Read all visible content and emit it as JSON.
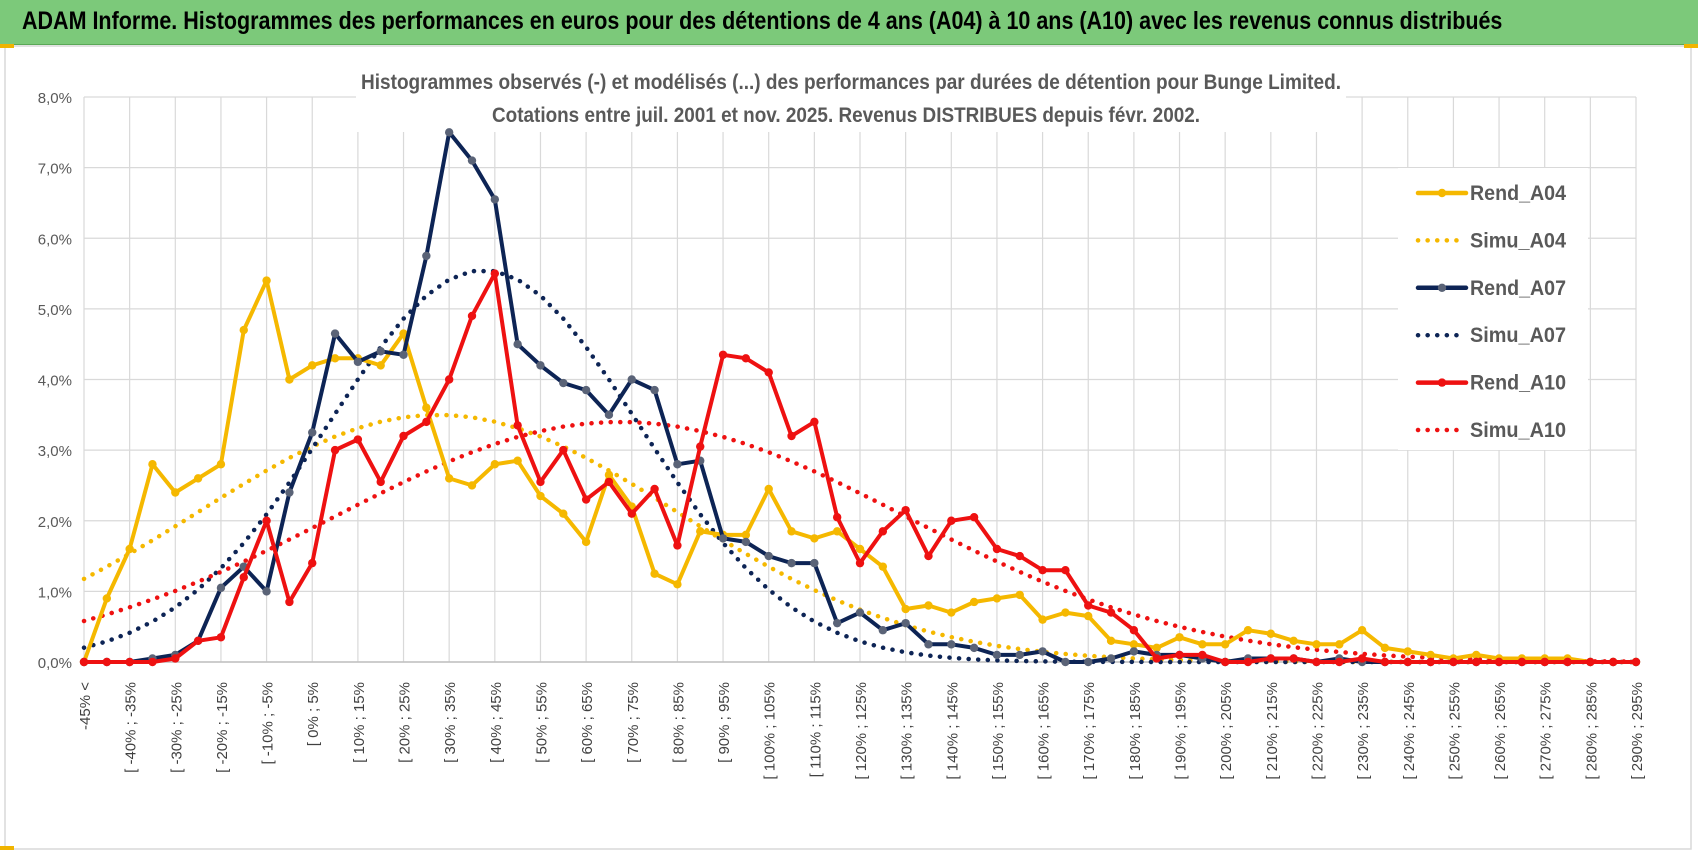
{
  "banner": {
    "title": "ADAM Informe. Histogrammes des performances en euros pour des détentions de 4 ans (A04) à 10 ans (A10) avec les revenus connus distribués"
  },
  "colors": {
    "banner_bg": "#7cc97a",
    "a04": "#f5b800",
    "a07": "#0d2455",
    "a07_marker": "#5a6377",
    "a10": "#ee1111",
    "grid": "#d9d9d9",
    "text": "#595959"
  },
  "chart_data": {
    "type": "line",
    "title_line1": "Histogrammes observés (-) et modélisés (...) des performances par durées de détention pour Bunge Limited.",
    "title_line2": "Cotations entre juil. 2001 et nov. 2025. Revenus DISTRIBUES depuis févr. 2002.",
    "ylim": [
      0,
      8
    ],
    "yticks": [
      "0,0%",
      "1,0%",
      "2,0%",
      "3,0%",
      "4,0%",
      "5,0%",
      "6,0%",
      "7,0%",
      "8,0%"
    ],
    "tick_labels": [
      "-45% <",
      "[ -40% ; -35%",
      "[ -30% ; -25%",
      "[ -20% ; -15%",
      "[ -10% ; -5%",
      "[ 0% ; 5%",
      "[ 10% ; 15%",
      "[ 20% ; 25%",
      "[ 30% ; 35%",
      "[ 40% ; 45%",
      "[ 50% ; 55%",
      "[ 60% ; 65%",
      "[ 70% ; 75%",
      "[ 80% ; 85%",
      "[ 90% ; 95%",
      "[ 100% ; 105%",
      "[ 110% ; 115%",
      "[ 120% ; 125%",
      "[ 130% ; 135%",
      "[ 140% ; 145%",
      "[ 150% ; 155%",
      "[ 160% ; 165%",
      "[ 170% ; 175%",
      "[ 180% ; 185%",
      "[ 190% ; 195%",
      "[ 200% ; 205%",
      "[ 210% ; 215%",
      "[ 220% ; 225%",
      "[ 230% ; 235%",
      "[ 240% ; 245%",
      "[ 250% ; 255%",
      "[ 260% ; 265%",
      "[ 270% ; 275%",
      "[ 280% ; 285%",
      "[ 290% ; 295%"
    ],
    "n_categories": 69,
    "legend_position": "right",
    "series": [
      {
        "name": "Rend_A04",
        "style": "solid",
        "color": "#f5b800",
        "markers": true,
        "values": [
          0.0,
          0.9,
          1.6,
          2.8,
          2.4,
          2.6,
          2.8,
          4.7,
          5.4,
          4.0,
          4.2,
          4.3,
          4.3,
          4.2,
          4.65,
          3.6,
          2.6,
          2.5,
          2.8,
          2.85,
          2.35,
          2.1,
          1.7,
          2.65,
          2.2,
          1.25,
          1.1,
          1.85,
          1.8,
          1.8,
          2.45,
          1.85,
          1.75,
          1.85,
          1.6,
          1.35,
          0.75,
          0.8,
          0.7,
          0.85,
          0.9,
          0.95,
          0.6,
          0.7,
          0.65,
          0.3,
          0.25,
          0.2,
          0.35,
          0.25,
          0.25,
          0.45,
          0.4,
          0.3,
          0.25,
          0.25,
          0.45,
          0.2,
          0.15,
          0.1,
          0.05,
          0.1,
          0.05,
          0.05,
          0.05,
          0.05,
          0.0,
          0.0,
          0.0
        ]
      },
      {
        "name": "Simu_A04",
        "style": "dotted",
        "color": "#f5b800",
        "markers": false,
        "model": {
          "amp": 3.5,
          "mu": 15.5,
          "sd": 10.5
        }
      },
      {
        "name": "Rend_A07",
        "style": "solid",
        "color": "#0d2455",
        "markers": true,
        "values": [
          0.0,
          0.0,
          0.0,
          0.05,
          0.1,
          0.3,
          1.05,
          1.35,
          1.0,
          2.4,
          3.25,
          4.65,
          4.25,
          4.4,
          4.35,
          5.75,
          7.5,
          7.1,
          6.55,
          4.5,
          4.2,
          3.95,
          3.85,
          3.5,
          4.0,
          3.85,
          2.8,
          2.85,
          1.75,
          1.7,
          1.5,
          1.4,
          1.4,
          0.55,
          0.7,
          0.45,
          0.55,
          0.25,
          0.25,
          0.2,
          0.1,
          0.1,
          0.15,
          0.0,
          0.0,
          0.05,
          0.15,
          0.1,
          0.1,
          0.05,
          0.0,
          0.05,
          0.05,
          0.05,
          0.0,
          0.05,
          0.0,
          0.0,
          0.0,
          0.0,
          0.0,
          0.0,
          0.0,
          0.0,
          0.0,
          0.0,
          0.0,
          0.0,
          0.0
        ]
      },
      {
        "name": "Simu_A07",
        "style": "dotted",
        "color": "#0d2455",
        "markers": false,
        "model": {
          "amp": 5.55,
          "mu": 17.5,
          "sd": 6.8
        }
      },
      {
        "name": "Rend_A10",
        "style": "solid",
        "color": "#ee1111",
        "markers": true,
        "values": [
          0.0,
          0.0,
          0.0,
          0.0,
          0.05,
          0.3,
          0.35,
          1.2,
          2.0,
          0.85,
          1.4,
          3.0,
          3.15,
          2.55,
          3.2,
          3.4,
          4.0,
          4.9,
          5.5,
          3.35,
          2.55,
          3.0,
          2.3,
          2.55,
          2.1,
          2.45,
          1.65,
          3.05,
          4.35,
          4.3,
          4.1,
          3.2,
          3.4,
          2.05,
          1.4,
          1.85,
          2.15,
          1.5,
          2.0,
          2.05,
          1.6,
          1.5,
          1.3,
          1.3,
          0.8,
          0.7,
          0.45,
          0.05,
          0.1,
          0.1,
          0.0,
          0.0,
          0.05,
          0.05,
          0.0,
          0.0,
          0.05,
          0.0,
          0.0,
          0.0,
          0.0,
          0.0,
          0.0,
          0.0,
          0.0,
          0.0,
          0.0,
          0.0,
          0.0
        ]
      },
      {
        "name": "Simu_A10",
        "style": "dotted",
        "color": "#ee1111",
        "markers": false,
        "model": {
          "amp": 3.4,
          "mu": 23.5,
          "sd": 12.5
        }
      }
    ]
  }
}
